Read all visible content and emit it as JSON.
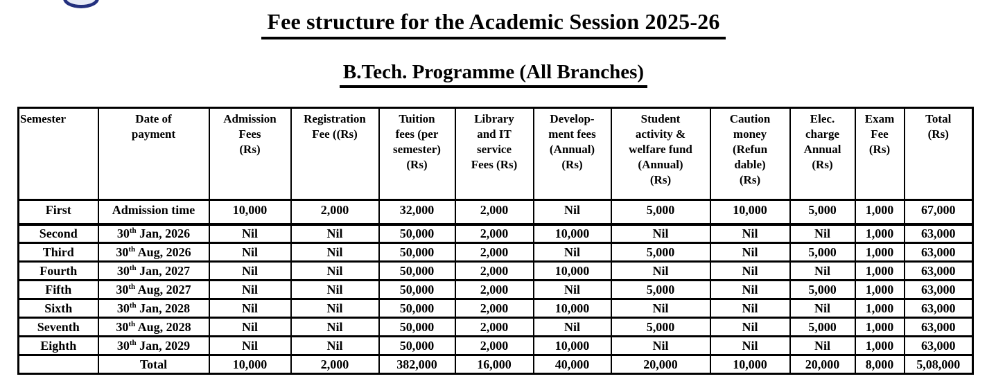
{
  "page": {
    "title": "Fee structure for the Academic Session 2025-26",
    "subtitle": "B.Tech. Programme (All Branches)"
  },
  "logo": {
    "name": "institution-seal",
    "border_color": "#23307e",
    "fill_color": "#e7ebf7"
  },
  "fee_table": {
    "columns": [
      {
        "key": "semester",
        "label": "Semester"
      },
      {
        "key": "date",
        "label": "Date of\npayment"
      },
      {
        "key": "admission_fees",
        "label": "Admission\nFees\n(Rs)"
      },
      {
        "key": "registration_fee",
        "label": "Registration\nFee ((Rs)"
      },
      {
        "key": "tuition_fees",
        "label": "Tuition\nfees (per\nsemester)\n(Rs)"
      },
      {
        "key": "library_it_fees",
        "label": "Library\nand IT\nservice\nFees (Rs)"
      },
      {
        "key": "development_fees",
        "label": "Develop-\nment fees\n(Annual)\n(Rs)"
      },
      {
        "key": "student_activity_fund",
        "label": "Student\nactivity &\nwelfare fund\n(Annual)\n(Rs)"
      },
      {
        "key": "caution_money",
        "label": "Caution\nmoney\n(Refun\ndable)\n(Rs)"
      },
      {
        "key": "elec_charge",
        "label": "Elec.\ncharge\nAnnual\n(Rs)"
      },
      {
        "key": "exam_fee",
        "label": "Exam\nFee\n(Rs)"
      },
      {
        "key": "total",
        "label": "Total\n(Rs)"
      }
    ],
    "rows": [
      {
        "semester": "First",
        "date": {
          "text": "Admission time"
        },
        "admission_fees": "10,000",
        "registration_fee": "2,000",
        "tuition_fees": "32,000",
        "library_it_fees": "2,000",
        "development_fees": "Nil",
        "student_activity_fund": "5,000",
        "caution_money": "10,000",
        "elec_charge": "5,000",
        "exam_fee": "1,000",
        "total": "67,000"
      },
      {
        "semester": "Second",
        "date": {
          "day": "30",
          "ordinal": "th",
          "rest": "Jan, 2026"
        },
        "admission_fees": "Nil",
        "registration_fee": "Nil",
        "tuition_fees": "50,000",
        "library_it_fees": "2,000",
        "development_fees": "10,000",
        "student_activity_fund": "Nil",
        "caution_money": "Nil",
        "elec_charge": "Nil",
        "exam_fee": "1,000",
        "total": "63,000"
      },
      {
        "semester": "Third",
        "date": {
          "day": "30",
          "ordinal": "th",
          "rest": "Aug, 2026"
        },
        "admission_fees": "Nil",
        "registration_fee": "Nil",
        "tuition_fees": "50,000",
        "library_it_fees": "2,000",
        "development_fees": "Nil",
        "student_activity_fund": "5,000",
        "caution_money": "Nil",
        "elec_charge": "5,000",
        "exam_fee": "1,000",
        "total": "63,000"
      },
      {
        "semester": "Fourth",
        "date": {
          "day": "30",
          "ordinal": "th",
          "rest": "Jan, 2027"
        },
        "admission_fees": "Nil",
        "registration_fee": "Nil",
        "tuition_fees": "50,000",
        "library_it_fees": "2,000",
        "development_fees": "10,000",
        "student_activity_fund": "Nil",
        "caution_money": "Nil",
        "elec_charge": "Nil",
        "exam_fee": "1,000",
        "total": "63,000"
      },
      {
        "semester": "Fifth",
        "date": {
          "day": "30",
          "ordinal": "th",
          "rest": "Aug, 2027"
        },
        "admission_fees": "Nil",
        "registration_fee": "Nil",
        "tuition_fees": "50,000",
        "library_it_fees": "2,000",
        "development_fees": "Nil",
        "student_activity_fund": "5,000",
        "caution_money": "Nil",
        "elec_charge": "5,000",
        "exam_fee": "1,000",
        "total": "63,000"
      },
      {
        "semester": "Sixth",
        "date": {
          "day": "30",
          "ordinal": "th",
          "rest": "Jan, 2028"
        },
        "admission_fees": "Nil",
        "registration_fee": "Nil",
        "tuition_fees": "50,000",
        "library_it_fees": "2,000",
        "development_fees": "10,000",
        "student_activity_fund": "Nil",
        "caution_money": "Nil",
        "elec_charge": "Nil",
        "exam_fee": "1,000",
        "total": "63,000"
      },
      {
        "semester": "Seventh",
        "date": {
          "day": "30",
          "ordinal": "th",
          "rest": "Aug, 2028"
        },
        "admission_fees": "Nil",
        "registration_fee": "Nil",
        "tuition_fees": "50,000",
        "library_it_fees": "2,000",
        "development_fees": "Nil",
        "student_activity_fund": "5,000",
        "caution_money": "Nil",
        "elec_charge": "5,000",
        "exam_fee": "1,000",
        "total": "63,000"
      },
      {
        "semester": "Eighth",
        "date": {
          "day": "30",
          "ordinal": "th",
          "rest": "Jan, 2029"
        },
        "admission_fees": "Nil",
        "registration_fee": "Nil",
        "tuition_fees": "50,000",
        "library_it_fees": "2,000",
        "development_fees": "10,000",
        "student_activity_fund": "Nil",
        "caution_money": "Nil",
        "elec_charge": "Nil",
        "exam_fee": "1,000",
        "total": "63,000"
      },
      {
        "is_total": true,
        "semester": "",
        "date": {
          "text": "Total"
        },
        "admission_fees": "10,000",
        "registration_fee": "2,000",
        "tuition_fees": "382,000",
        "library_it_fees": "16,000",
        "development_fees": "40,000",
        "student_activity_fund": "20,000",
        "caution_money": "10,000",
        "elec_charge": "20,000",
        "exam_fee": "8,000",
        "total": "5,08,000"
      }
    ]
  }
}
